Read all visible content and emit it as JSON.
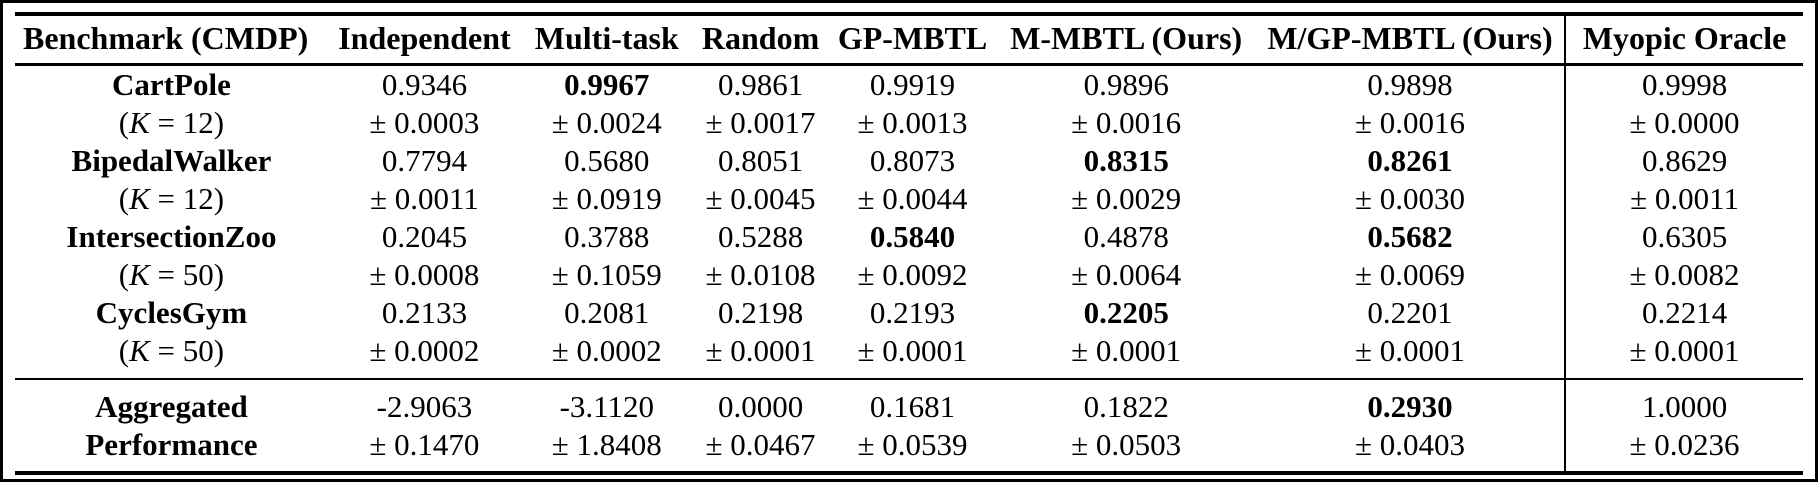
{
  "table": {
    "columns": [
      "Benchmark (CMDP)",
      "Independent",
      "Multi-task",
      "Random",
      "GP-MBTL",
      "M-MBTL (Ours)",
      "M/GP-MBTL (Ours)",
      "Myopic Oracle"
    ],
    "rows": [
      {
        "benchmark": "CartPole",
        "k_open": "(",
        "k_var": "K",
        "k_rest": " = 12)",
        "cells": [
          {
            "v": "0.9346",
            "e": "± 0.0003",
            "bold": false
          },
          {
            "v": "0.9967",
            "e": "± 0.0024",
            "bold": true
          },
          {
            "v": "0.9861",
            "e": "± 0.0017",
            "bold": false
          },
          {
            "v": "0.9919",
            "e": "± 0.0013",
            "bold": false
          },
          {
            "v": "0.9896",
            "e": "± 0.0016",
            "bold": false
          },
          {
            "v": "0.9898",
            "e": "± 0.0016",
            "bold": false
          },
          {
            "v": "0.9998",
            "e": "± 0.0000",
            "bold": false
          }
        ]
      },
      {
        "benchmark": "BipedalWalker",
        "k_open": "(",
        "k_var": "K",
        "k_rest": " = 12)",
        "cells": [
          {
            "v": "0.7794",
            "e": "± 0.0011",
            "bold": false
          },
          {
            "v": "0.5680",
            "e": "± 0.0919",
            "bold": false
          },
          {
            "v": "0.8051",
            "e": "± 0.0045",
            "bold": false
          },
          {
            "v": "0.8073",
            "e": "± 0.0044",
            "bold": false
          },
          {
            "v": "0.8315",
            "e": "± 0.0029",
            "bold": true
          },
          {
            "v": "0.8261",
            "e": "± 0.0030",
            "bold": true
          },
          {
            "v": "0.8629",
            "e": "± 0.0011",
            "bold": false
          }
        ]
      },
      {
        "benchmark": "IntersectionZoo",
        "k_open": "(",
        "k_var": "K",
        "k_rest": " = 50)",
        "cells": [
          {
            "v": "0.2045",
            "e": "± 0.0008",
            "bold": false
          },
          {
            "v": "0.3788",
            "e": "± 0.1059",
            "bold": false
          },
          {
            "v": "0.5288",
            "e": "± 0.0108",
            "bold": false
          },
          {
            "v": "0.5840",
            "e": "± 0.0092",
            "bold": true
          },
          {
            "v": "0.4878",
            "e": "± 0.0064",
            "bold": false
          },
          {
            "v": "0.5682",
            "e": "± 0.0069",
            "bold": true
          },
          {
            "v": "0.6305",
            "e": "± 0.0082",
            "bold": false
          }
        ]
      },
      {
        "benchmark": "CyclesGym",
        "k_open": "(",
        "k_var": "K",
        "k_rest": " = 50)",
        "cells": [
          {
            "v": "0.2133",
            "e": "± 0.0002",
            "bold": false
          },
          {
            "v": "0.2081",
            "e": "± 0.0002",
            "bold": false
          },
          {
            "v": "0.2198",
            "e": "± 0.0001",
            "bold": false
          },
          {
            "v": "0.2193",
            "e": "± 0.0001",
            "bold": false
          },
          {
            "v": "0.2205",
            "e": "± 0.0001",
            "bold": true
          },
          {
            "v": "0.2201",
            "e": "± 0.0001",
            "bold": false
          },
          {
            "v": "0.2214",
            "e": "± 0.0001",
            "bold": false
          }
        ]
      }
    ],
    "footer": {
      "label_line1": "Aggregated",
      "label_line2": "Performance",
      "cells": [
        {
          "v": "-2.9063",
          "e": "± 0.1470",
          "bold": false
        },
        {
          "v": "-3.1120",
          "e": "± 1.8408",
          "bold": false
        },
        {
          "v": "0.0000",
          "e": "± 0.0467",
          "bold": false
        },
        {
          "v": "0.1681",
          "e": "± 0.0539",
          "bold": false
        },
        {
          "v": "0.1822",
          "e": "± 0.0503",
          "bold": false
        },
        {
          "v": "0.2930",
          "e": "± 0.0403",
          "bold": true
        },
        {
          "v": "1.0000",
          "e": "± 0.0236",
          "bold": false
        }
      ]
    }
  },
  "colors": {
    "text": "#000000",
    "background": "#ffffff",
    "rule": "#000000"
  }
}
